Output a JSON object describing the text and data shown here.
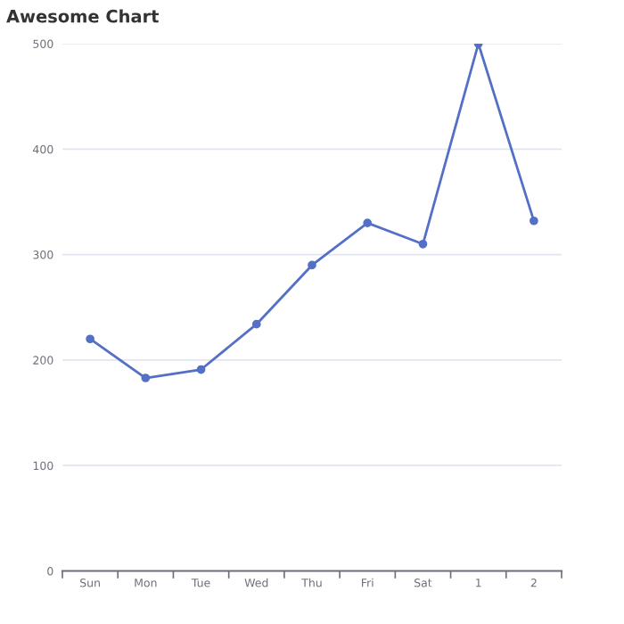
{
  "chart_data": {
    "type": "line",
    "title": "Awesome Chart",
    "categories": [
      "Sun",
      "Mon",
      "Tue",
      "Wed",
      "Thu",
      "Fri",
      "Sat",
      "1",
      "2"
    ],
    "series": [
      {
        "color": "#5470c6",
        "values": [
          220,
          183,
          191,
          234,
          290,
          330,
          310,
          500,
          332
        ]
      }
    ],
    "ylim": [
      0,
      500
    ],
    "yticks": [
      0,
      100,
      200,
      300,
      400,
      500
    ],
    "grid": "y",
    "marker": "circle",
    "line_style": "solid"
  }
}
